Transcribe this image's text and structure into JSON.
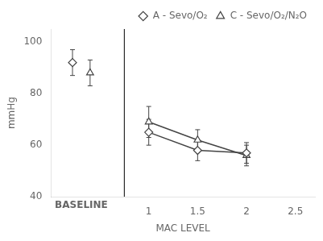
{
  "chart_data": {
    "type": "line",
    "xlabel": "MAC LEVEL",
    "ylabel": "mmHg",
    "xlim": [
      0.0,
      2.7
    ],
    "xticks": [
      1,
      1.5,
      2,
      2.5
    ],
    "ylim": [
      40,
      105
    ],
    "yticks": [
      40,
      60,
      80,
      100
    ],
    "grid": false,
    "legend": "upper right",
    "vlines": [
      0.75
    ],
    "annotations": [
      {
        "text": "BASELINE",
        "x": 0.31
      }
    ],
    "series": [
      {
        "name": "A - Sevo/O₂",
        "color": "#444444",
        "marker": "diamond",
        "line_style": "solid",
        "baseline": {
          "x": 0.22,
          "value": 92,
          "error": 5
        },
        "x": [
          1.0,
          1.5,
          2.0
        ],
        "values": [
          65,
          58,
          57
        ],
        "errors": [
          5,
          4,
          4
        ]
      },
      {
        "name": "C - Sevo/O₂/N₂O",
        "color": "#444444",
        "marker": "triangle",
        "line_style": "solid",
        "baseline": {
          "x": 0.4,
          "value": 88,
          "error": 5
        },
        "x": [
          1.0,
          1.5,
          2.0
        ],
        "values": [
          69,
          62,
          56
        ],
        "errors": [
          6,
          4,
          4
        ]
      }
    ]
  }
}
